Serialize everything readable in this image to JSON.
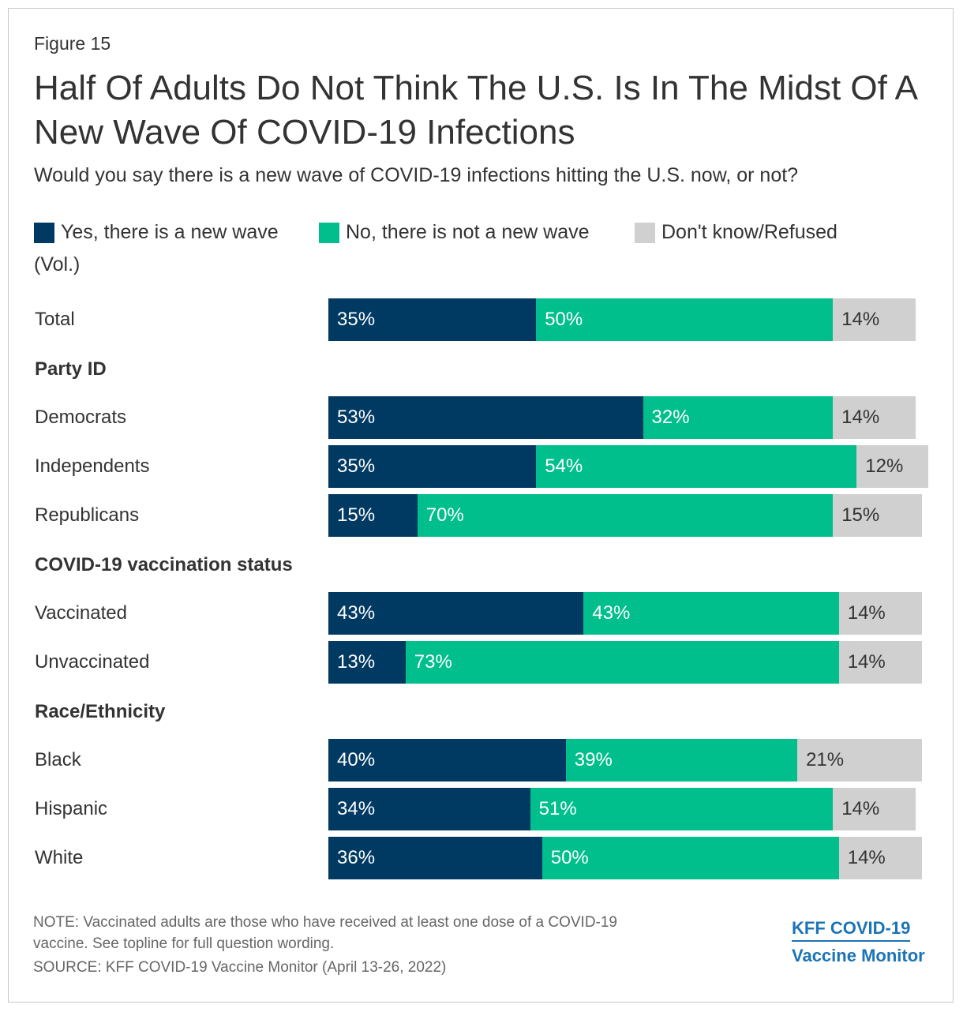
{
  "figure_label": "Figure 15",
  "title": "Half Of Adults Do Not Think The U.S. Is In The Midst Of A New Wave Of COVID-19 Infections",
  "subtitle": "Would you say there is a new wave of COVID-19 infections hitting the U.S. now, or not?",
  "legend": [
    {
      "label": "Yes, there is a new wave",
      "color": "#003a63"
    },
    {
      "label": "No, there is not a new wave",
      "color": "#00bf8c"
    },
    {
      "label": "Don't know/Refused",
      "color": "#d0d0d0"
    }
  ],
  "legend_wrap": "(Vol.)",
  "groups": [
    "Party ID",
    "COVID-19 vaccination status",
    "Race/Ethnicity"
  ],
  "colors": {
    "yes": "#003a63",
    "no": "#00bf8c",
    "dk": "#d0d0d0"
  },
  "chart_data": {
    "type": "bar",
    "orientation": "horizontal",
    "stacked": true,
    "categories": [
      "Total",
      "Democrats",
      "Independents",
      "Republicans",
      "Vaccinated",
      "Unvaccinated",
      "Black",
      "Hispanic",
      "White"
    ],
    "series": [
      {
        "name": "Yes, there is a new wave",
        "values": [
          35,
          53,
          35,
          15,
          43,
          13,
          40,
          34,
          36
        ]
      },
      {
        "name": "No, there is not a new wave",
        "values": [
          50,
          32,
          54,
          70,
          43,
          73,
          39,
          51,
          50
        ]
      },
      {
        "name": "Don't know/Refused (Vol.)",
        "values": [
          14,
          14,
          12,
          15,
          14,
          14,
          21,
          14,
          14
        ]
      }
    ],
    "value_suffix": "%"
  },
  "footer": {
    "note_line1": "NOTE: Vaccinated adults are those who have received at least one dose of a COVID-19",
    "note_line2": "vaccine. See topline for full question wording.",
    "source": "SOURCE: KFF COVID-19 Vaccine Monitor (April 13-26, 2022)",
    "brand_line1": "KFF COVID-19",
    "brand_line2": "Vaccine Monitor"
  }
}
